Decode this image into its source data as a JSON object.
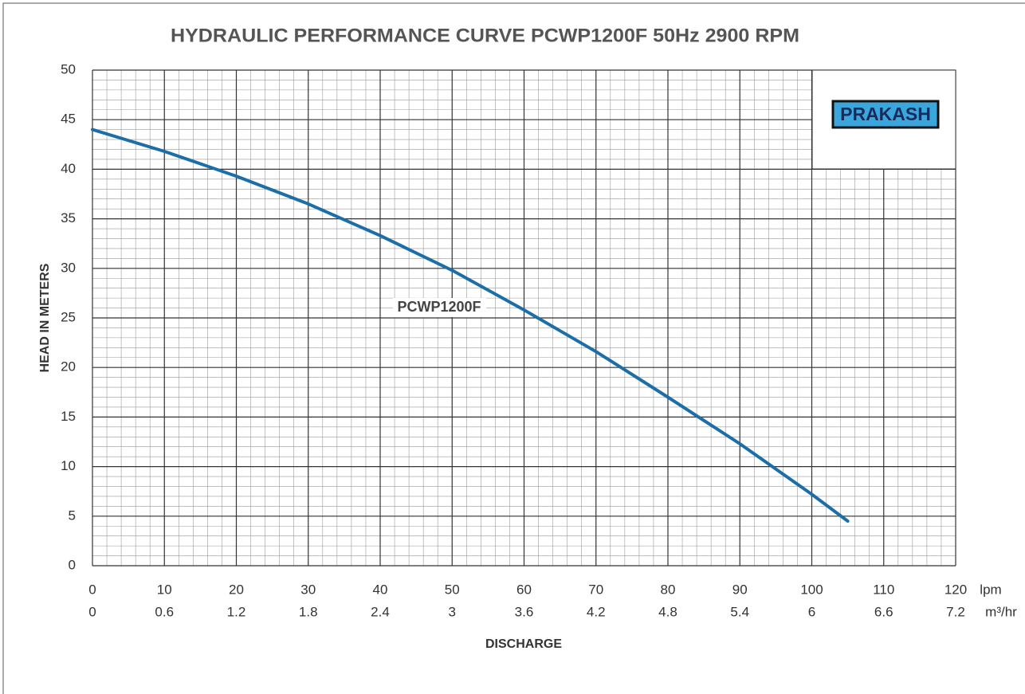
{
  "chart_data": {
    "type": "line",
    "title": "HYDRAULIC PERFORMANCE CURVE PCWP1200F 50Hz 2900 RPM",
    "xlabel": "DISCHARGE",
    "ylabel": "HEAD IN METERS",
    "x_unit": "lpm",
    "x2_unit": "m³/hr",
    "logo": "PRAKASH",
    "x": [
      0,
      10,
      20,
      30,
      40,
      50,
      60,
      70,
      80,
      90,
      100,
      105
    ],
    "series": [
      {
        "name": "PCWP1200F",
        "color": "#1b6ea8",
        "values": [
          44,
          41.8,
          39.3,
          36.5,
          33.3,
          29.8,
          25.8,
          21.6,
          17.0,
          12.3,
          7.2,
          4.5
        ]
      }
    ],
    "xlim": [
      0,
      120
    ],
    "xticks": [
      0,
      10,
      20,
      30,
      40,
      50,
      60,
      70,
      80,
      90,
      100,
      110,
      120
    ],
    "x2ticks": [
      0,
      0.6,
      1.2,
      1.8,
      2.4,
      3,
      3.6,
      4.2,
      4.8,
      5.4,
      6,
      6.6,
      7.2
    ],
    "ylim": [
      0,
      50
    ],
    "yticks": [
      0,
      5,
      10,
      15,
      20,
      25,
      30,
      35,
      40,
      45,
      50
    ],
    "grid": true,
    "minor_grid": {
      "x": 2,
      "y": 1
    }
  }
}
